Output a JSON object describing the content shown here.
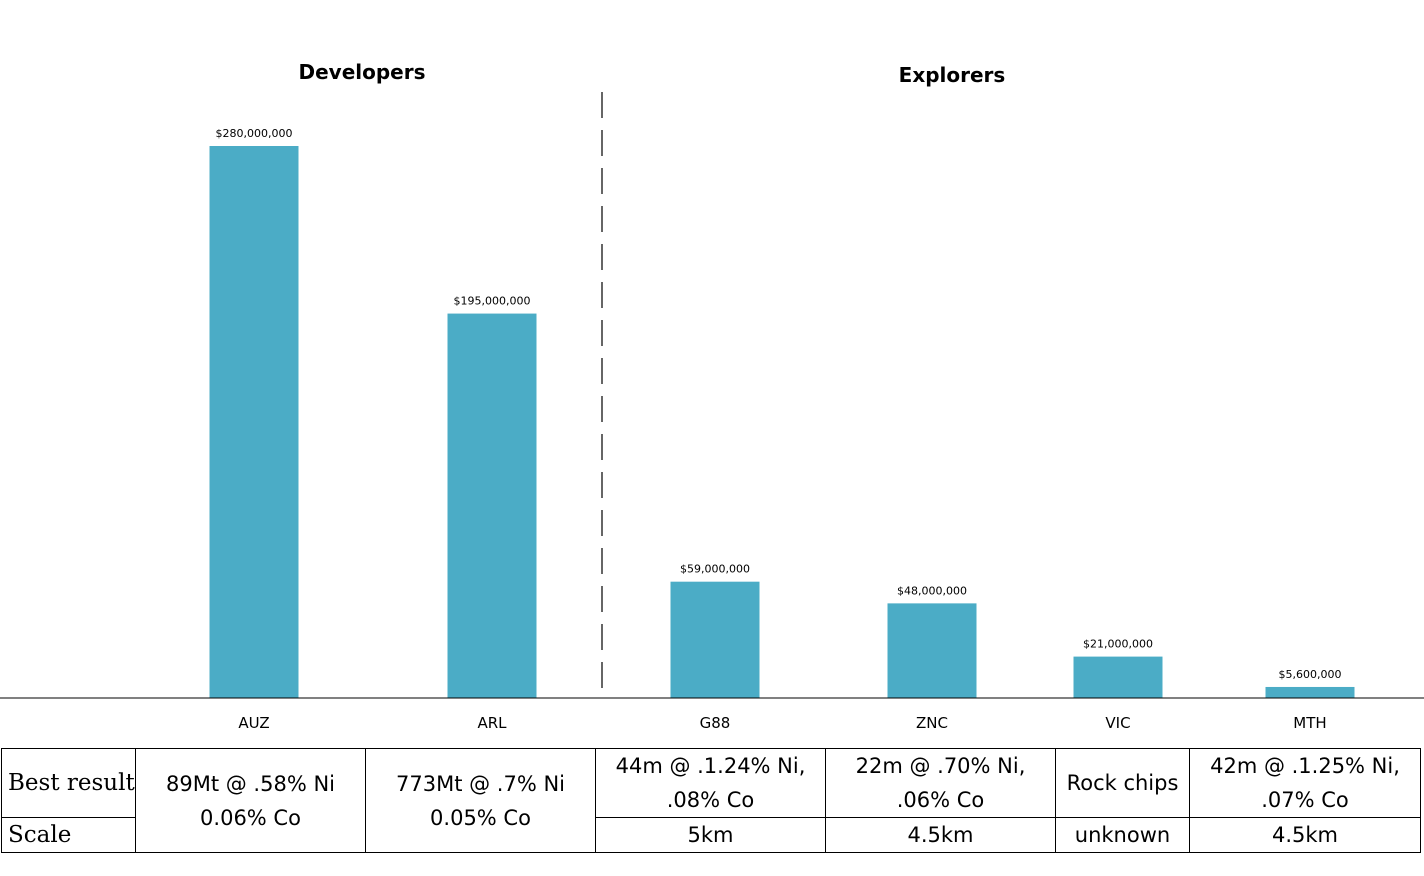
{
  "chart_data": {
    "type": "bar",
    "groups": [
      {
        "title": "Developers",
        "categories": [
          "AUZ",
          "ARL"
        ]
      },
      {
        "title": "Explorers",
        "categories": [
          "G88",
          "ZNC",
          "VIC",
          "MTH"
        ]
      }
    ],
    "categories": [
      "AUZ",
      "ARL",
      "G88",
      "ZNC",
      "VIC",
      "MTH"
    ],
    "values": [
      280000000,
      195000000,
      59000000,
      48000000,
      21000000,
      5600000
    ],
    "value_labels": [
      "$280,000,000",
      "$195,000,000",
      "$59,000,000",
      "$48,000,000",
      "$21,000,000",
      "$5,600,000"
    ],
    "bar_color": "#4bacc6",
    "ylim": [
      0,
      300000000
    ],
    "grid": false,
    "legend": "none",
    "divider": "dashed vertical line between ARL and G88"
  },
  "table": {
    "row_headers": [
      "Best result",
      "Scale"
    ],
    "developers": [
      {
        "ticker": "AUZ",
        "result_line1": "89Mt @ .58% Ni",
        "result_line2": "0.06% Co"
      },
      {
        "ticker": "ARL",
        "result_line1": "773Mt @ .7% Ni",
        "result_line2": "0.05% Co"
      }
    ],
    "explorers": [
      {
        "ticker": "G88",
        "result_line1": "44m @ .1.24% Ni,",
        "result_line2": ".08% Co",
        "scale": "5km"
      },
      {
        "ticker": "ZNC",
        "result_line1": "22m @ .70% Ni,",
        "result_line2": ".06% Co",
        "scale": "4.5km"
      },
      {
        "ticker": "VIC",
        "result_line1": "Rock chips",
        "result_line2": "",
        "scale": "unknown"
      },
      {
        "ticker": "MTH",
        "result_line1": "42m @ .1.25% Ni,",
        "result_line2": ".07% Co",
        "scale": "4.5km"
      }
    ]
  }
}
